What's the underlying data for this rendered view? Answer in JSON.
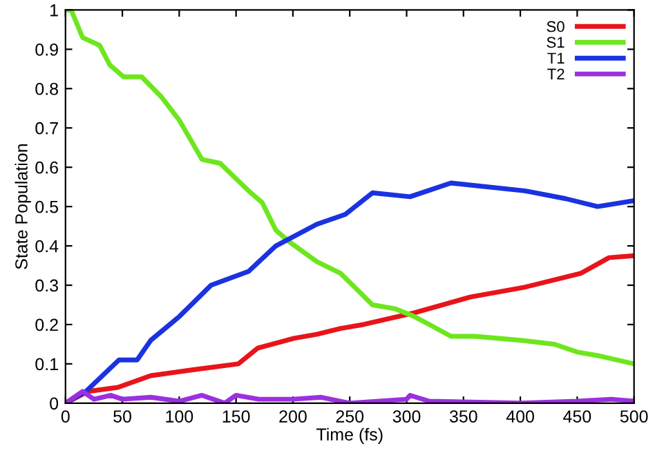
{
  "chart_data": {
    "type": "line",
    "xlabel": "Time (fs)",
    "ylabel": "State Population",
    "xlim": [
      0,
      500
    ],
    "ylim": [
      0,
      1
    ],
    "xticks": [
      0,
      50,
      100,
      150,
      200,
      250,
      300,
      350,
      400,
      450,
      500
    ],
    "yticks": [
      0,
      0.1,
      0.2,
      0.3,
      0.4,
      0.5,
      0.6,
      0.7,
      0.8,
      0.9,
      1
    ],
    "grid": false,
    "legend": "top right",
    "series": [
      {
        "name": "S0",
        "color": "#e8141a",
        "x": [
          0,
          20,
          46,
          75,
          112,
          152,
          169,
          201,
          221,
          242,
          262,
          307,
          356,
          404,
          453,
          478,
          500
        ],
        "values": [
          0,
          0.03,
          0.04,
          0.07,
          0.085,
          0.1,
          0.14,
          0.165,
          0.175,
          0.19,
          0.2,
          0.23,
          0.27,
          0.295,
          0.33,
          0.37,
          0.375
        ]
      },
      {
        "name": "S1",
        "color": "#6ee61e",
        "x": [
          0,
          5,
          15,
          30,
          39,
          51,
          67,
          84,
          100,
          120,
          136,
          161,
          173,
          185,
          197,
          221,
          242,
          270,
          290,
          307,
          320,
          339,
          360,
          400,
          430,
          450,
          470,
          500
        ],
        "values": [
          1,
          1,
          0.93,
          0.91,
          0.86,
          0.83,
          0.83,
          0.78,
          0.72,
          0.62,
          0.61,
          0.54,
          0.51,
          0.44,
          0.41,
          0.36,
          0.33,
          0.25,
          0.24,
          0.22,
          0.2,
          0.17,
          0.17,
          0.16,
          0.15,
          0.13,
          0.12,
          0.1
        ]
      },
      {
        "name": "T1",
        "color": "#1a32e0",
        "x": [
          0,
          18,
          47,
          63,
          75,
          100,
          128,
          161,
          185,
          221,
          246,
          270,
          303,
          339,
          404,
          440,
          468,
          500
        ],
        "values": [
          0,
          0.03,
          0.11,
          0.11,
          0.16,
          0.22,
          0.3,
          0.335,
          0.4,
          0.455,
          0.48,
          0.535,
          0.525,
          0.56,
          0.54,
          0.52,
          0.5,
          0.515
        ]
      },
      {
        "name": "T2",
        "color": "#9b30e0",
        "x": [
          0,
          15,
          25,
          40,
          50,
          75,
          100,
          120,
          140,
          150,
          170,
          200,
          225,
          250,
          300,
          303,
          320,
          400,
          450,
          480,
          500
        ],
        "values": [
          0,
          0.03,
          0.01,
          0.02,
          0.01,
          0.015,
          0.005,
          0.02,
          0,
          0.02,
          0.01,
          0.01,
          0.015,
          0,
          0.01,
          0.02,
          0.005,
          0,
          0.005,
          0.01,
          0.005
        ]
      }
    ]
  }
}
